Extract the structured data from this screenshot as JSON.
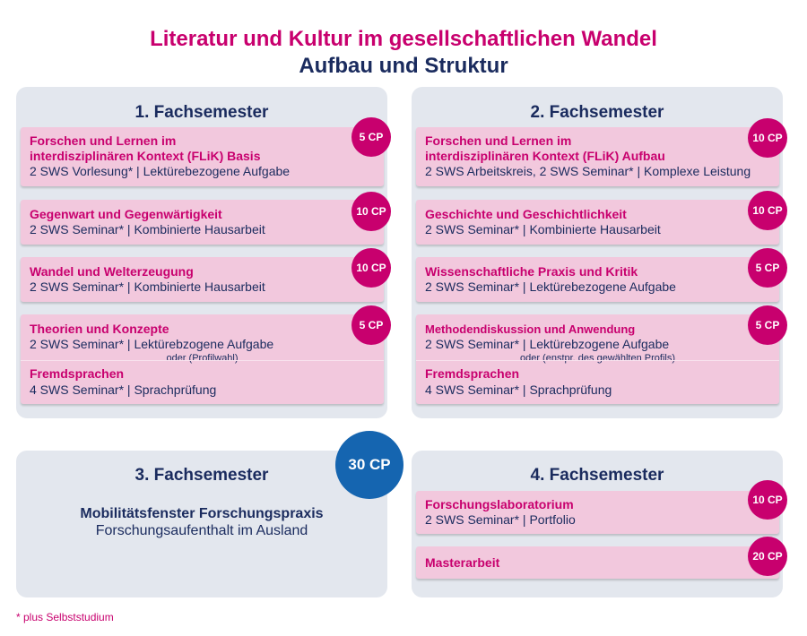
{
  "title": "Literatur und Kultur im gesellschaftlichen Wandel",
  "subtitle": "Aufbau und Struktur",
  "semester1": {
    "title": "1. Fachsemester",
    "modules": [
      {
        "title_line1": "Forschen und Lernen im",
        "title_line2": "interdisziplinären Kontext (FLiK) Basis",
        "details": "2 SWS Vorlesung* | Lektürebezogene Aufgabe",
        "cp": "5 CP"
      },
      {
        "title": "Gegenwart und Gegenwärtigkeit",
        "details": "2 SWS Seminar* | Kombinierte Hausarbeit",
        "cp": "10 CP"
      },
      {
        "title": "Wandel und Welterzeugung",
        "details": "2 SWS Seminar* | Kombinierte Hausarbeit",
        "cp": "10 CP"
      },
      {
        "title": "Theorien und Konzepte",
        "details": "2 SWS Seminar* | Lektürebzogene Aufgabe",
        "or_text": "oder (Profilwahl)",
        "alt_title": "Fremdsprachen",
        "alt_details": "4 SWS Seminar* | Sprachprüfung",
        "cp": "5 CP"
      }
    ]
  },
  "semester2": {
    "title": "2. Fachsemester",
    "modules": [
      {
        "title_line1": "Forschen und Lernen im",
        "title_line2": "interdisziplinären Kontext (FLiK) Aufbau",
        "details": "2 SWS Arbeitskreis, 2 SWS Seminar* | Komplexe Leistung",
        "cp": "10 CP"
      },
      {
        "title": "Geschichte und Geschichtlichkeit",
        "details": "2 SWS Seminar* | Kombinierte Hausarbeit",
        "cp": "10 CP"
      },
      {
        "title": "Wissenschaftliche Praxis und Kritik",
        "details": "2 SWS Seminar* | Lektürebezogene Aufgabe",
        "cp": "5 CP"
      },
      {
        "title": "Methodendiskussion und Anwendung",
        "details": "2 SWS Seminar* | Lektürebzogene Aufgabe",
        "or_text": "oder (enstpr. des gewählten Profils)",
        "alt_title": "Fremdsprachen",
        "alt_details": "4 SWS Seminar* | Sprachprüfung",
        "cp": "5 CP"
      }
    ]
  },
  "semester3": {
    "title": "3. Fachsemester",
    "cp": "30 CP",
    "module_title": "Mobilitätsfenster Forschungspraxis",
    "module_details": "Forschungsaufenthalt im Ausland"
  },
  "semester4": {
    "title": "4. Fachsemester",
    "modules": [
      {
        "title": "Forschungslaboratorium",
        "details": "2 SWS Seminar* | Portfolio",
        "cp": "10 CP"
      },
      {
        "title": "Masterarbeit",
        "cp": "20 CP"
      }
    ]
  },
  "footnote": "* plus Selbststudium",
  "colors": {
    "magenta": "#c8006e",
    "navy": "#1a2b5e",
    "blue": "#1565b0",
    "panel": "#e3e7ee",
    "card": "#f2c8dd"
  }
}
